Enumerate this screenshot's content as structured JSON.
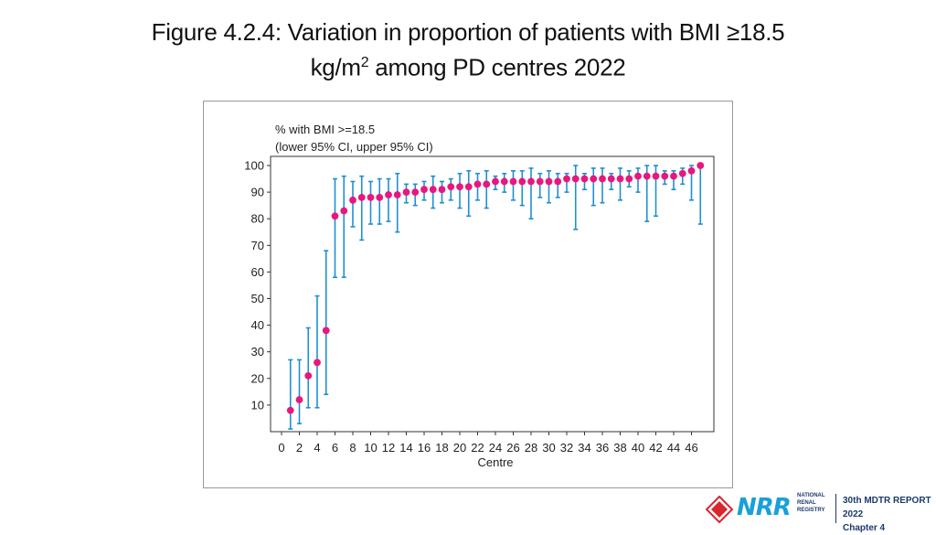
{
  "title_line1": "Figure 4.2.4: Variation in proportion of patients with BMI ≥18.5",
  "title_line2_pre": "kg/m",
  "title_line2_sup": "2",
  "title_line2_post": " among PD centres 2022",
  "footer": {
    "logo_text": "NRR",
    "logo_sub": [
      "NATIONAL",
      "RENAL",
      "REGISTRY"
    ],
    "report_line1": "30th MDTR REPORT 2022",
    "report_line2": "Chapter 4"
  },
  "colors": {
    "point": "#e8177e",
    "ci": "#1f8fd1",
    "axis": "#333333"
  },
  "chart_data": {
    "type": "scatter",
    "title": "",
    "legend_line1": "% with BMI >=18.5",
    "legend_line2": "(lower 95% CI, upper 95% CI)",
    "xlabel": "Centre",
    "ylabel": "",
    "xlim": [
      0,
      47
    ],
    "ylim": [
      0,
      100
    ],
    "x_ticks": [
      0,
      2,
      4,
      6,
      8,
      10,
      12,
      14,
      16,
      18,
      20,
      22,
      24,
      26,
      28,
      30,
      32,
      34,
      36,
      38,
      40,
      42,
      44,
      46
    ],
    "y_ticks": [
      10,
      20,
      30,
      40,
      50,
      60,
      70,
      80,
      90,
      100
    ],
    "points": [
      {
        "x": 1,
        "y": 8,
        "lo": 1,
        "hi": 27
      },
      {
        "x": 2,
        "y": 12,
        "lo": 3,
        "hi": 27
      },
      {
        "x": 3,
        "y": 21,
        "lo": 9,
        "hi": 39
      },
      {
        "x": 4,
        "y": 26,
        "lo": 9,
        "hi": 51
      },
      {
        "x": 5,
        "y": 38,
        "lo": 14,
        "hi": 68
      },
      {
        "x": 6,
        "y": 81,
        "lo": 58,
        "hi": 95
      },
      {
        "x": 7,
        "y": 83,
        "lo": 58,
        "hi": 96
      },
      {
        "x": 8,
        "y": 87,
        "lo": 77,
        "hi": 94
      },
      {
        "x": 9,
        "y": 88,
        "lo": 72,
        "hi": 96
      },
      {
        "x": 10,
        "y": 88,
        "lo": 78,
        "hi": 94
      },
      {
        "x": 11,
        "y": 88,
        "lo": 78,
        "hi": 95
      },
      {
        "x": 12,
        "y": 89,
        "lo": 79,
        "hi": 95
      },
      {
        "x": 13,
        "y": 89,
        "lo": 75,
        "hi": 97
      },
      {
        "x": 14,
        "y": 90,
        "lo": 86,
        "hi": 93
      },
      {
        "x": 15,
        "y": 90,
        "lo": 85,
        "hi": 93
      },
      {
        "x": 16,
        "y": 91,
        "lo": 87,
        "hi": 94
      },
      {
        "x": 17,
        "y": 91,
        "lo": 84,
        "hi": 96
      },
      {
        "x": 18,
        "y": 91,
        "lo": 86,
        "hi": 94
      },
      {
        "x": 19,
        "y": 92,
        "lo": 87,
        "hi": 95
      },
      {
        "x": 20,
        "y": 92,
        "lo": 84,
        "hi": 97
      },
      {
        "x": 21,
        "y": 92,
        "lo": 81,
        "hi": 98
      },
      {
        "x": 22,
        "y": 93,
        "lo": 87,
        "hi": 97
      },
      {
        "x": 23,
        "y": 93,
        "lo": 84,
        "hi": 98
      },
      {
        "x": 24,
        "y": 94,
        "lo": 91,
        "hi": 96
      },
      {
        "x": 25,
        "y": 94,
        "lo": 90,
        "hi": 97
      },
      {
        "x": 26,
        "y": 94,
        "lo": 87,
        "hi": 98
      },
      {
        "x": 27,
        "y": 94,
        "lo": 85,
        "hi": 98
      },
      {
        "x": 28,
        "y": 94,
        "lo": 80,
        "hi": 99
      },
      {
        "x": 29,
        "y": 94,
        "lo": 88,
        "hi": 97
      },
      {
        "x": 30,
        "y": 94,
        "lo": 86,
        "hi": 98
      },
      {
        "x": 31,
        "y": 94,
        "lo": 88,
        "hi": 97
      },
      {
        "x": 32,
        "y": 95,
        "lo": 90,
        "hi": 97
      },
      {
        "x": 33,
        "y": 95,
        "lo": 76,
        "hi": 100
      },
      {
        "x": 34,
        "y": 95,
        "lo": 91,
        "hi": 97
      },
      {
        "x": 35,
        "y": 95,
        "lo": 85,
        "hi": 99
      },
      {
        "x": 36,
        "y": 95,
        "lo": 86,
        "hi": 99
      },
      {
        "x": 37,
        "y": 95,
        "lo": 91,
        "hi": 97
      },
      {
        "x": 38,
        "y": 95,
        "lo": 87,
        "hi": 99
      },
      {
        "x": 39,
        "y": 95,
        "lo": 92,
        "hi": 98
      },
      {
        "x": 40,
        "y": 96,
        "lo": 90,
        "hi": 99
      },
      {
        "x": 41,
        "y": 96,
        "lo": 79,
        "hi": 100
      },
      {
        "x": 42,
        "y": 96,
        "lo": 81,
        "hi": 100
      },
      {
        "x": 43,
        "y": 96,
        "lo": 93,
        "hi": 98
      },
      {
        "x": 44,
        "y": 96,
        "lo": 91,
        "hi": 98
      },
      {
        "x": 45,
        "y": 97,
        "lo": 93,
        "hi": 99
      },
      {
        "x": 46,
        "y": 98,
        "lo": 87,
        "hi": 100
      },
      {
        "x": 47,
        "y": 100,
        "lo": 78,
        "hi": 100
      }
    ]
  }
}
